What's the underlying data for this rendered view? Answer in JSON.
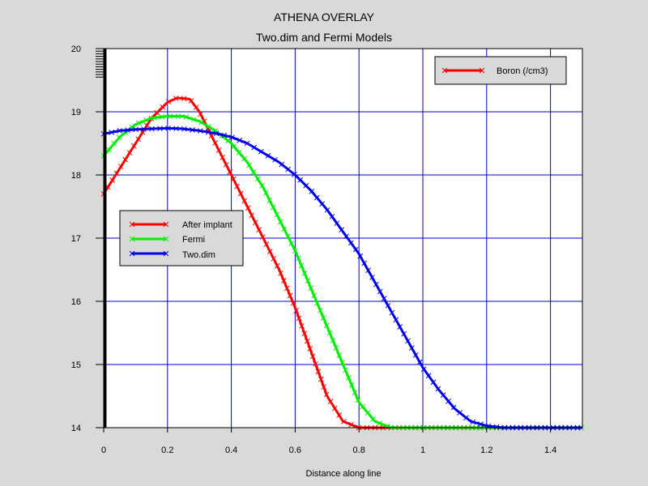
{
  "chart_data": {
    "type": "line",
    "title": "ATHENA OVERLAY",
    "subtitle": "Two.dim and Fermi Models",
    "xlabel": "Distance along line",
    "ylabel": "",
    "xlim": [
      0,
      1.5
    ],
    "ylim": [
      14,
      20
    ],
    "x_ticks": [
      0,
      0.2,
      0.4,
      0.6,
      0.8,
      1,
      1.2,
      1.4
    ],
    "x_tick_labels": [
      "0",
      "0.2",
      "0.4",
      "0.6",
      "0.8",
      "1",
      "1.2",
      "1.4"
    ],
    "y_ticks": [
      14,
      15,
      16,
      17,
      18,
      19,
      20
    ],
    "y_tick_labels": [
      "14",
      "15",
      "16",
      "17",
      "18",
      "19",
      "20"
    ],
    "grid": true,
    "legend_placement": "left-middle",
    "series": [
      {
        "name": "After implant",
        "color": "#ff0000",
        "points": [
          [
            0,
            17.7
          ],
          [
            0.05,
            18.1
          ],
          [
            0.1,
            18.5
          ],
          [
            0.15,
            18.9
          ],
          [
            0.2,
            19.15
          ],
          [
            0.23,
            19.22
          ],
          [
            0.27,
            19.2
          ],
          [
            0.3,
            19.0
          ],
          [
            0.35,
            18.5
          ],
          [
            0.4,
            18.0
          ],
          [
            0.45,
            17.5
          ],
          [
            0.5,
            17.0
          ],
          [
            0.55,
            16.5
          ],
          [
            0.6,
            15.9
          ],
          [
            0.65,
            15.2
          ],
          [
            0.7,
            14.5
          ],
          [
            0.75,
            14.1
          ],
          [
            0.8,
            14.0
          ],
          [
            1.5,
            14.0
          ]
        ]
      },
      {
        "name": "Fermi",
        "color": "#00ee00",
        "points": [
          [
            0,
            18.3
          ],
          [
            0.05,
            18.6
          ],
          [
            0.1,
            18.8
          ],
          [
            0.15,
            18.9
          ],
          [
            0.2,
            18.93
          ],
          [
            0.25,
            18.93
          ],
          [
            0.3,
            18.85
          ],
          [
            0.35,
            18.7
          ],
          [
            0.4,
            18.5
          ],
          [
            0.45,
            18.2
          ],
          [
            0.5,
            17.8
          ],
          [
            0.55,
            17.3
          ],
          [
            0.6,
            16.8
          ],
          [
            0.65,
            16.2
          ],
          [
            0.7,
            15.6
          ],
          [
            0.75,
            15.0
          ],
          [
            0.8,
            14.4
          ],
          [
            0.85,
            14.1
          ],
          [
            0.9,
            14.0
          ],
          [
            1.5,
            14.0
          ]
        ]
      },
      {
        "name": "Two.dim",
        "color": "#0000ee",
        "points": [
          [
            0,
            18.65
          ],
          [
            0.05,
            18.7
          ],
          [
            0.1,
            18.72
          ],
          [
            0.15,
            18.73
          ],
          [
            0.2,
            18.74
          ],
          [
            0.25,
            18.73
          ],
          [
            0.3,
            18.7
          ],
          [
            0.35,
            18.66
          ],
          [
            0.4,
            18.6
          ],
          [
            0.45,
            18.5
          ],
          [
            0.5,
            18.35
          ],
          [
            0.55,
            18.2
          ],
          [
            0.6,
            18.0
          ],
          [
            0.65,
            17.75
          ],
          [
            0.7,
            17.45
          ],
          [
            0.75,
            17.1
          ],
          [
            0.8,
            16.75
          ],
          [
            0.85,
            16.3
          ],
          [
            0.9,
            15.85
          ],
          [
            0.95,
            15.4
          ],
          [
            1.0,
            14.95
          ],
          [
            1.05,
            14.6
          ],
          [
            1.1,
            14.3
          ],
          [
            1.15,
            14.1
          ],
          [
            1.2,
            14.03
          ],
          [
            1.25,
            14.0
          ],
          [
            1.5,
            14.0
          ]
        ]
      },
      {
        "name": "Boron (/cm3)",
        "color": "#000000",
        "points": [
          [
            0.005,
            14.0
          ],
          [
            0.005,
            20.0
          ]
        ]
      }
    ],
    "legends": [
      {
        "placement": "left-middle",
        "entries": [
          "After implant",
          "Fermi",
          "Two.dim"
        ]
      },
      {
        "placement": "top-right",
        "entries": [
          "Boron (/cm3)"
        ]
      }
    ]
  },
  "legend_boron_color": "#ee0000",
  "tick_color": "#000000",
  "grid_color": "#0000cc"
}
